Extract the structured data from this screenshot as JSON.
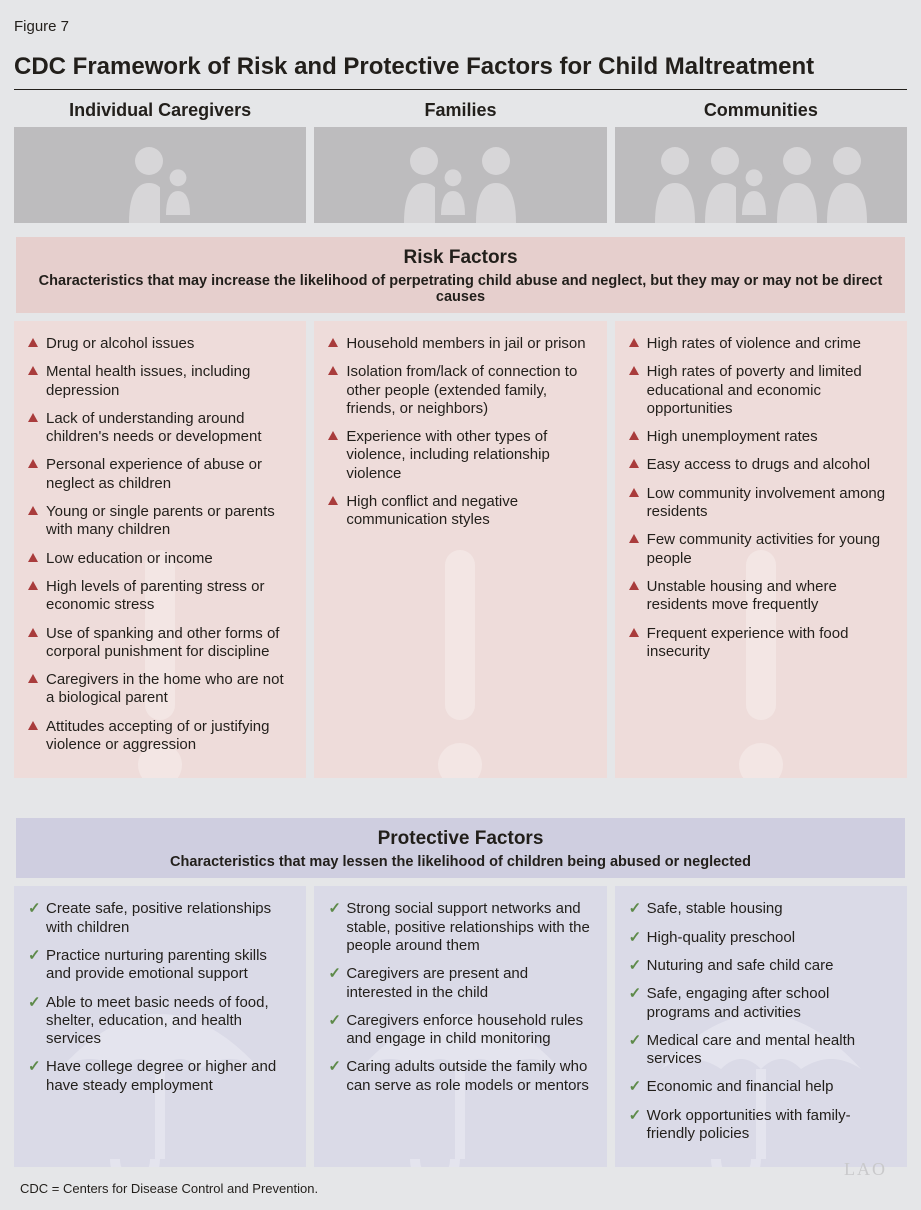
{
  "figure_label": "Figure 7",
  "title": "CDC Framework of Risk and Protective Factors for Child Maltreatment",
  "columns": [
    {
      "header": "Individual Caregivers",
      "people": "1+child"
    },
    {
      "header": "Families",
      "people": "2+child"
    },
    {
      "header": "Communities",
      "people": "4+child"
    }
  ],
  "risk": {
    "title": "Risk Factors",
    "subtitle": "Characteristics that may increase the likelihood of perpetrating child abuse and neglect, but they may or may not be direct causes",
    "header_bg": "#e6cfcd",
    "card_bg": "#eedcda",
    "bullet_color": "#a93c3c",
    "watermark": "exclamation",
    "cols": [
      [
        "Drug or alcohol issues",
        "Mental health issues, including depression",
        "Lack of understanding around children's needs or development",
        "Personal experience of abuse or neglect as children",
        "Young or single parents or parents with many children",
        "Low education or income",
        "High levels of parenting stress or economic stress",
        "Use of spanking and other forms of corporal punishment for discipline",
        "Caregivers in the home who are not a biological parent",
        "Attitudes accepting of or justifying violence or aggression"
      ],
      [
        "Household members in jail or prison",
        "Isolation from/lack of connection to other people (extended family, friends, or neighbors)",
        "Experience with other types of violence, including relationship violence",
        "High conflict and negative communication styles"
      ],
      [
        "High rates of violence and crime",
        "High rates of poverty and limited educational and economic opportunities",
        "High unemployment rates",
        "Easy access to drugs and alcohol",
        "Low community involvement among residents",
        "Few community activities for young people",
        "Unstable housing and where residents move frequently",
        "Frequent experience with food insecurity"
      ]
    ]
  },
  "protect": {
    "title": "Protective Factors",
    "subtitle": "Characteristics that may lessen the likelihood of children being abused or neglected",
    "header_bg": "#cfcee0",
    "card_bg": "#dadae7",
    "bullet_color": "#5e8a4a",
    "watermark": "umbrella",
    "cols": [
      [
        "Create safe, positive relationships with children",
        "Practice nurturing parenting skills and provide emotional support",
        "Able to meet basic needs of food, shelter, education, and health services",
        "Have college degree or higher and have steady employment"
      ],
      [
        "Strong social support networks and stable, positive relationships with the people around them",
        "Caregivers are present and interested in the child",
        "Caregivers enforce household rules and engage in child monitoring",
        "Caring adults outside the family who can serve as role models or mentors"
      ],
      [
        "Safe, stable housing",
        "High-quality preschool",
        "Nuturing and safe child care",
        "Safe, engaging after school programs and activities",
        "Medical care and mental health services",
        "Economic and financial help",
        "Work opportunities with family-friendly policies"
      ]
    ]
  },
  "footnote": "CDC = Centers for Disease Control and Prevention.",
  "watermark_text": "LAO",
  "colors": {
    "page_bg": "#e5e6e8",
    "iconbox_bg": "#bdbcbe",
    "silhouette": "#d7d6d8",
    "risk_watermark": "#f3e6e4",
    "protect_watermark": "#e4e4ee"
  }
}
